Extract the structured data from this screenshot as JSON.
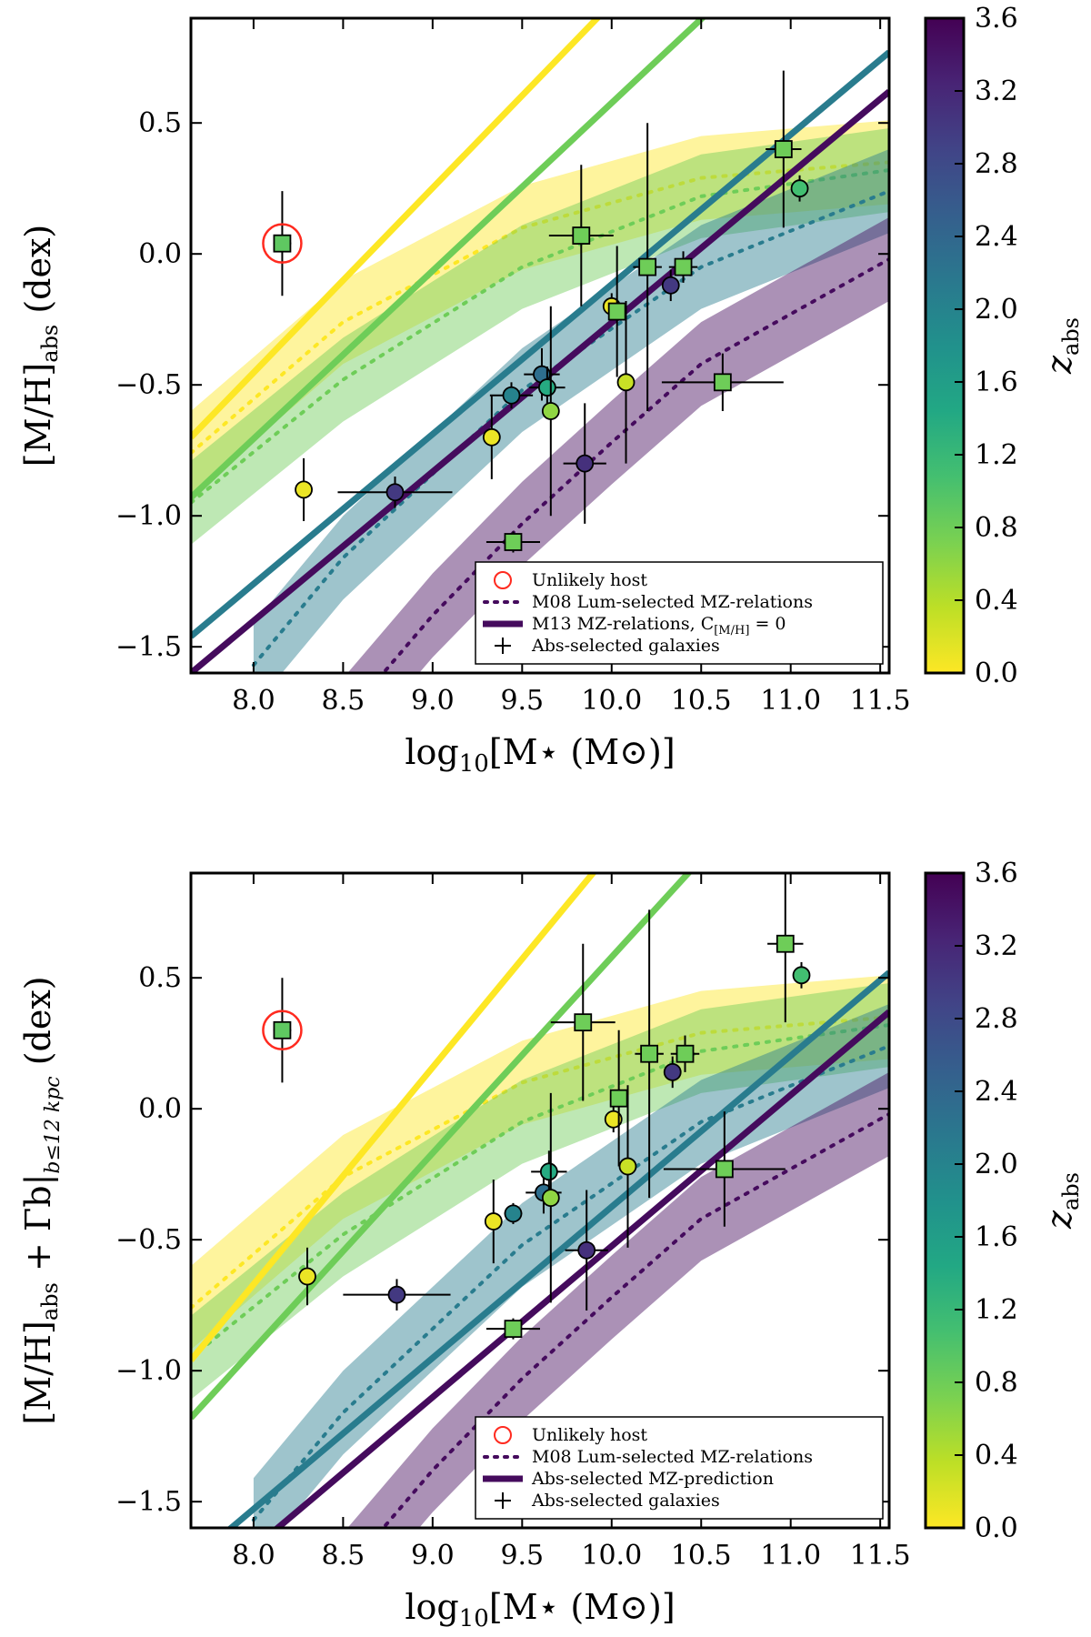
{
  "chart_data": [
    {
      "type": "scatter",
      "panel": "top",
      "title": "",
      "xlabel": "log10[M⋆ (M⊙)]",
      "xlabel_parts": {
        "pre": "log",
        "sub": "10",
        "post": "[M⋆ (M⊙)]"
      },
      "ylabel": "[M/H]abs (dex)",
      "ylabel_parts": {
        "pre": "[M/H]",
        "sub": "abs",
        "post": " (dex)"
      },
      "xlim": [
        7.65,
        11.55
      ],
      "ylim": [
        -1.6,
        0.9
      ],
      "xticks": [
        "8.0",
        "8.5",
        "9.0",
        "9.5",
        "10.0",
        "10.5",
        "11.0",
        "11.5"
      ],
      "yticks": [
        "0.5",
        "0.0",
        "−0.5",
        "−1.0",
        "−1.5"
      ],
      "ytick_values": [
        0.5,
        0.0,
        -0.5,
        -1.0,
        -1.5
      ],
      "xtick_values": [
        8.0,
        8.5,
        9.0,
        9.5,
        10.0,
        10.5,
        11.0,
        11.5
      ],
      "colorbar": {
        "label": "z",
        "label_sub": "abs",
        "range": [
          0.0,
          3.6
        ],
        "ticks": [
          "3.6",
          "3.2",
          "2.8",
          "2.4",
          "2.0",
          "1.6",
          "1.2",
          "0.8",
          "0.4",
          "0.0"
        ]
      },
      "legend": {
        "position": "lower-right",
        "entries": [
          {
            "label": "Unlikely host",
            "marker": "red-circle"
          },
          {
            "label": "M08 Lum-selected MZ-relations",
            "marker": "dotted-line"
          },
          {
            "label": "M13 MZ-relations, C",
            "sub": "[M/H]",
            "post": " = 0",
            "marker": "thick-line"
          },
          {
            "label": "Abs-selected galaxies",
            "marker": "cross"
          }
        ]
      },
      "mz_relations": [
        {
          "z": 0.0,
          "type": "M13",
          "line": [
            [
              7.65,
              -0.7
            ],
            [
              11.55,
              2.05
            ]
          ]
        },
        {
          "z": 0.8,
          "type": "M13",
          "line": [
            [
              7.65,
              -0.93
            ],
            [
              11.55,
              1.57
            ]
          ]
        },
        {
          "z": 2.1,
          "type": "M13",
          "line": [
            [
              7.65,
              -1.46
            ],
            [
              11.55,
              0.77
            ]
          ]
        },
        {
          "z": 3.5,
          "type": "M13",
          "line": [
            [
              7.65,
              -1.6
            ],
            [
              11.55,
              0.62
            ]
          ]
        }
      ],
      "m08_bands": [
        {
          "z": 0.0,
          "center": [
            [
              7.65,
              -0.76
            ],
            [
              8.5,
              -0.26
            ],
            [
              9.5,
              0.1
            ],
            [
              10.5,
              0.29
            ],
            [
              11.55,
              0.35
            ]
          ]
        },
        {
          "z": 0.8,
          "center": [
            [
              7.65,
              -0.95
            ],
            [
              8.5,
              -0.48
            ],
            [
              9.5,
              -0.05
            ],
            [
              10.5,
              0.22
            ],
            [
              11.55,
              0.32
            ]
          ]
        },
        {
          "z": 2.1,
          "center": [
            [
              8.0,
              -1.57
            ],
            [
              8.5,
              -1.16
            ],
            [
              9.5,
              -0.52
            ],
            [
              10.5,
              -0.05
            ],
            [
              11.55,
              0.24
            ]
          ]
        },
        {
          "z": 3.5,
          "center": [
            [
              8.5,
              -1.78
            ],
            [
              9.0,
              -1.38
            ],
            [
              9.5,
              -1.03
            ],
            [
              10.0,
              -0.72
            ],
            [
              10.5,
              -0.42
            ],
            [
              11.55,
              -0.02
            ]
          ]
        }
      ],
      "points": [
        {
          "x": 8.16,
          "y": 0.04,
          "z": 0.9,
          "marker": "square",
          "xerr": 0.05,
          "yerr": 0.2,
          "unlikely": true
        },
        {
          "x": 8.28,
          "y": -0.9,
          "z": 0.1,
          "marker": "circle",
          "xerr": 0.04,
          "yerr": 0.12
        },
        {
          "x": 8.79,
          "y": -0.91,
          "z": 3.0,
          "marker": "circle",
          "xerr": 0.32,
          "yerr": 0.06
        },
        {
          "x": 9.33,
          "y": -0.7,
          "z": 0.1,
          "marker": "circle",
          "xerr": 0.02,
          "yerr": 0.16
        },
        {
          "x": 9.44,
          "y": -0.54,
          "z": 2.0,
          "marker": "circle",
          "xerr": 0.12,
          "yerr": 0.05
        },
        {
          "x": 9.45,
          "y": -1.1,
          "z": 0.8,
          "marker": "square",
          "xerr": 0.15,
          "yerr": 0.04
        },
        {
          "x": 9.61,
          "y": -0.46,
          "z": 2.3,
          "marker": "circle",
          "xerr": 0.1,
          "yerr": 0.1
        },
        {
          "x": 9.64,
          "y": -0.51,
          "z": 1.4,
          "marker": "circle",
          "xerr": 0.1,
          "yerr": 0.08
        },
        {
          "x": 9.66,
          "y": -0.6,
          "z": 0.6,
          "marker": "circle",
          "xerr": 0.02,
          "yerr": 0.4
        },
        {
          "x": 9.83,
          "y": 0.07,
          "z": 0.8,
          "marker": "square",
          "xerr": 0.18,
          "yerr": 0.27
        },
        {
          "x": 9.85,
          "y": -0.8,
          "z": 3.1,
          "marker": "circle",
          "xerr": 0.12,
          "yerr": 0.23
        },
        {
          "x": 10.0,
          "y": -0.2,
          "z": 0.1,
          "marker": "circle",
          "xerr": 0.04,
          "yerr": 0.05
        },
        {
          "x": 10.03,
          "y": -0.22,
          "z": 0.8,
          "marker": "square",
          "xerr": 0.04,
          "yerr": 0.25
        },
        {
          "x": 10.08,
          "y": -0.49,
          "z": 0.3,
          "marker": "circle",
          "xerr": 0.02,
          "yerr": 0.31
        },
        {
          "x": 10.2,
          "y": -0.05,
          "z": 0.8,
          "marker": "square",
          "xerr": 0.08,
          "yerr": 0.55
        },
        {
          "x": 10.33,
          "y": -0.12,
          "z": 3.0,
          "marker": "circle",
          "xerr": 0.04,
          "yerr": 0.06
        },
        {
          "x": 10.4,
          "y": -0.05,
          "z": 0.8,
          "marker": "square",
          "xerr": 0.08,
          "yerr": 0.06
        },
        {
          "x": 10.62,
          "y": -0.49,
          "z": 0.8,
          "marker": "square",
          "xerr": 0.34,
          "yerr": 0.11
        },
        {
          "x": 10.96,
          "y": 0.4,
          "z": 0.8,
          "marker": "square",
          "xerr": 0.1,
          "yerr": 0.3
        },
        {
          "x": 11.05,
          "y": 0.25,
          "z": 1.1,
          "marker": "circle",
          "xerr": 0.02,
          "yerr": 0.05
        }
      ]
    },
    {
      "type": "scatter",
      "panel": "bottom",
      "title": "",
      "xlabel": "log10[M⋆ (M⊙)]",
      "xlabel_parts": {
        "pre": "log",
        "sub": "10",
        "post": "[M⋆ (M⊙)]"
      },
      "ylabel": "[M/H]abs + Γb|b≤12 kpc (dex)",
      "ylabel_parts": {
        "pre": "[M/H]",
        "sub": "abs",
        "mid": " + Γb|",
        "sub2": "b≤12 kpc",
        "post": "  (dex)"
      },
      "xlim": [
        7.65,
        11.55
      ],
      "ylim": [
        -1.6,
        0.9
      ],
      "xticks": [
        "8.0",
        "8.5",
        "9.0",
        "9.5",
        "10.0",
        "10.5",
        "11.0",
        "11.5"
      ],
      "yticks": [
        "0.5",
        "0.0",
        "−0.5",
        "−1.0",
        "−1.5"
      ],
      "ytick_values": [
        0.5,
        0.0,
        -0.5,
        -1.0,
        -1.5
      ],
      "xtick_values": [
        8.0,
        8.5,
        9.0,
        9.5,
        10.0,
        10.5,
        11.0,
        11.5
      ],
      "colorbar": {
        "label": "z",
        "label_sub": "abs",
        "range": [
          0.0,
          3.6
        ],
        "ticks": [
          "3.6",
          "3.2",
          "2.8",
          "2.4",
          "2.0",
          "1.6",
          "1.2",
          "0.8",
          "0.4",
          "0.0"
        ]
      },
      "legend": {
        "position": "lower-right",
        "entries": [
          {
            "label": "Unlikely host",
            "marker": "red-circle"
          },
          {
            "label": "M08 Lum-selected MZ-relations",
            "marker": "dotted-line"
          },
          {
            "label": "Abs-selected MZ-prediction",
            "marker": "thick-line"
          },
          {
            "label": "Abs-selected galaxies",
            "marker": "cross"
          }
        ]
      },
      "mz_relations": [
        {
          "z": 0.0,
          "type": "prediction",
          "line": [
            [
              7.65,
              -0.96
            ],
            [
              11.55,
              2.27
            ]
          ]
        },
        {
          "z": 0.8,
          "type": "prediction",
          "line": [
            [
              7.65,
              -1.18
            ],
            [
              11.55,
              1.74
            ]
          ]
        },
        {
          "z": 2.1,
          "type": "prediction",
          "line": [
            [
              7.65,
              -1.73
            ],
            [
              11.55,
              0.52
            ]
          ]
        },
        {
          "z": 3.5,
          "type": "prediction",
          "line": [
            [
              7.65,
              -1.88
            ],
            [
              11.55,
              0.37
            ]
          ]
        }
      ],
      "m08_bands": [
        {
          "z": 0.0,
          "center": [
            [
              7.65,
              -0.76
            ],
            [
              8.5,
              -0.26
            ],
            [
              9.5,
              0.1
            ],
            [
              10.5,
              0.29
            ],
            [
              11.55,
              0.35
            ]
          ]
        },
        {
          "z": 0.8,
          "center": [
            [
              7.65,
              -0.95
            ],
            [
              8.5,
              -0.48
            ],
            [
              9.5,
              -0.05
            ],
            [
              10.5,
              0.22
            ],
            [
              11.55,
              0.32
            ]
          ]
        },
        {
          "z": 2.1,
          "center": [
            [
              8.0,
              -1.57
            ],
            [
              8.5,
              -1.16
            ],
            [
              9.5,
              -0.52
            ],
            [
              10.5,
              -0.05
            ],
            [
              11.55,
              0.24
            ]
          ]
        },
        {
          "z": 3.5,
          "center": [
            [
              8.5,
              -1.78
            ],
            [
              9.0,
              -1.38
            ],
            [
              9.5,
              -1.03
            ],
            [
              10.0,
              -0.72
            ],
            [
              10.5,
              -0.42
            ],
            [
              11.55,
              -0.02
            ]
          ]
        }
      ],
      "points": [
        {
          "x": 8.16,
          "y": 0.3,
          "z": 0.9,
          "marker": "square",
          "xerr": 0.05,
          "yerr": 0.2,
          "unlikely": true
        },
        {
          "x": 8.3,
          "y": -0.64,
          "z": 0.1,
          "marker": "circle",
          "xerr": 0.04,
          "yerr": 0.11
        },
        {
          "x": 8.8,
          "y": -0.71,
          "z": 3.0,
          "marker": "circle",
          "xerr": 0.3,
          "yerr": 0.06
        },
        {
          "x": 9.34,
          "y": -0.43,
          "z": 0.1,
          "marker": "circle",
          "xerr": 0.03,
          "yerr": 0.16
        },
        {
          "x": 9.45,
          "y": -0.4,
          "z": 2.0,
          "marker": "circle",
          "xerr": 0.05,
          "yerr": 0.04
        },
        {
          "x": 9.45,
          "y": -0.84,
          "z": 0.8,
          "marker": "square",
          "xerr": 0.15,
          "yerr": 0.04
        },
        {
          "x": 9.62,
          "y": -0.32,
          "z": 2.3,
          "marker": "circle",
          "xerr": 0.1,
          "yerr": 0.08
        },
        {
          "x": 9.65,
          "y": -0.24,
          "z": 1.4,
          "marker": "circle",
          "xerr": 0.1,
          "yerr": 0.08
        },
        {
          "x": 9.66,
          "y": -0.34,
          "z": 0.6,
          "marker": "circle",
          "xerr": 0.02,
          "yerr": 0.4
        },
        {
          "x": 9.84,
          "y": 0.33,
          "z": 0.8,
          "marker": "square",
          "xerr": 0.18,
          "yerr": 0.3
        },
        {
          "x": 9.86,
          "y": -0.54,
          "z": 3.1,
          "marker": "circle",
          "xerr": 0.12,
          "yerr": 0.23
        },
        {
          "x": 10.01,
          "y": -0.04,
          "z": 0.1,
          "marker": "circle",
          "xerr": 0.03,
          "yerr": 0.05
        },
        {
          "x": 10.04,
          "y": 0.04,
          "z": 0.8,
          "marker": "square",
          "xerr": 0.04,
          "yerr": 0.26
        },
        {
          "x": 10.09,
          "y": -0.22,
          "z": 0.3,
          "marker": "circle",
          "xerr": 0.02,
          "yerr": 0.31
        },
        {
          "x": 10.21,
          "y": 0.21,
          "z": 0.8,
          "marker": "square",
          "xerr": 0.08,
          "yerr": 0.55
        },
        {
          "x": 10.34,
          "y": 0.14,
          "z": 3.0,
          "marker": "circle",
          "xerr": 0.04,
          "yerr": 0.06
        },
        {
          "x": 10.41,
          "y": 0.21,
          "z": 0.8,
          "marker": "square",
          "xerr": 0.08,
          "yerr": 0.07
        },
        {
          "x": 10.63,
          "y": -0.23,
          "z": 0.8,
          "marker": "square",
          "xerr": 0.34,
          "yerr": 0.22
        },
        {
          "x": 10.97,
          "y": 0.63,
          "z": 0.8,
          "marker": "square",
          "xerr": 0.1,
          "yerr": 0.3
        },
        {
          "x": 11.06,
          "y": 0.51,
          "z": 1.1,
          "marker": "circle",
          "xerr": 0.02,
          "yerr": 0.05
        }
      ]
    }
  ],
  "colors": {
    "unlikely_host": "#ff2a1f",
    "viridis": [
      "#440154",
      "#482475",
      "#414487",
      "#355f8d",
      "#2a788e",
      "#21918c",
      "#22a884",
      "#44bf70",
      "#7ad151",
      "#bddf26",
      "#fde725"
    ]
  }
}
